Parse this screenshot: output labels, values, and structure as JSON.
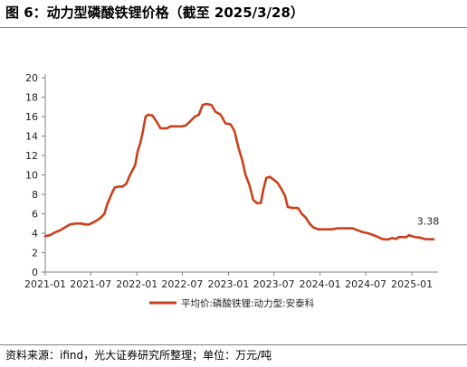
{
  "figure_title": "图 6：动力型磷酸铁锂价格（截至 2025/3/28）",
  "source_note": "资料来源：ifind，光大证券研究所整理；单位：万元/吨",
  "colors": {
    "line": "#c9411a",
    "axis": "#808080",
    "text": "#222222"
  },
  "chart_data": {
    "type": "line",
    "title": "",
    "xlabel": "",
    "ylabel": "",
    "x_ticks": [
      "2021-01",
      "2021-07",
      "2022-01",
      "2022-07",
      "2023-01",
      "2023-07",
      "2024-01",
      "2024-07",
      "2025-01"
    ],
    "y_ticks": [
      0,
      2,
      4,
      6,
      8,
      10,
      12,
      14,
      16,
      18,
      20
    ],
    "ylim": [
      0,
      20
    ],
    "xlim": [
      "2021-01-01",
      "2025-04-15"
    ],
    "grid": false,
    "legend_position": "bottom-center",
    "series": [
      {
        "name": "平均价:磷酸铁锂:动力型:安泰科",
        "points": [
          [
            "2021-01-01",
            3.7
          ],
          [
            "2021-01-20",
            3.8
          ],
          [
            "2021-02-10",
            4.1
          ],
          [
            "2021-03-01",
            4.3
          ],
          [
            "2021-03-20",
            4.6
          ],
          [
            "2021-04-10",
            4.9
          ],
          [
            "2021-05-01",
            5.0
          ],
          [
            "2021-05-25",
            5.0
          ],
          [
            "2021-06-10",
            4.9
          ],
          [
            "2021-06-25",
            4.9
          ],
          [
            "2021-07-10",
            5.1
          ],
          [
            "2021-07-25",
            5.3
          ],
          [
            "2021-08-10",
            5.6
          ],
          [
            "2021-08-25",
            6.0
          ],
          [
            "2021-09-05",
            7.0
          ],
          [
            "2021-09-15",
            7.6
          ],
          [
            "2021-09-25",
            8.2
          ],
          [
            "2021-10-05",
            8.7
          ],
          [
            "2021-10-20",
            8.8
          ],
          [
            "2021-11-05",
            8.8
          ],
          [
            "2021-11-20",
            9.1
          ],
          [
            "2021-12-05",
            10.0
          ],
          [
            "2021-12-15",
            10.5
          ],
          [
            "2021-12-25",
            11.0
          ],
          [
            "2022-01-05",
            12.5
          ],
          [
            "2022-01-15",
            13.3
          ],
          [
            "2022-01-25",
            14.5
          ],
          [
            "2022-02-05",
            16.0
          ],
          [
            "2022-02-15",
            16.2
          ],
          [
            "2022-03-05",
            16.1
          ],
          [
            "2022-03-20",
            15.5
          ],
          [
            "2022-04-05",
            14.8
          ],
          [
            "2022-05-01",
            14.8
          ],
          [
            "2022-05-15",
            15.0
          ],
          [
            "2022-06-01",
            15.0
          ],
          [
            "2022-07-01",
            15.0
          ],
          [
            "2022-07-15",
            15.1
          ],
          [
            "2022-08-01",
            15.5
          ],
          [
            "2022-08-20",
            16.0
          ],
          [
            "2022-09-05",
            16.2
          ],
          [
            "2022-09-20",
            17.2
          ],
          [
            "2022-10-05",
            17.3
          ],
          [
            "2022-10-25",
            17.2
          ],
          [
            "2022-11-10",
            16.5
          ],
          [
            "2022-12-01",
            16.2
          ],
          [
            "2022-12-20",
            15.3
          ],
          [
            "2023-01-10",
            15.2
          ],
          [
            "2023-01-25",
            14.5
          ],
          [
            "2023-02-10",
            12.8
          ],
          [
            "2023-02-25",
            11.5
          ],
          [
            "2023-03-10",
            10.0
          ],
          [
            "2023-03-25",
            9.0
          ],
          [
            "2023-04-10",
            7.4
          ],
          [
            "2023-04-25",
            7.1
          ],
          [
            "2023-05-10",
            7.1
          ],
          [
            "2023-05-20",
            8.5
          ],
          [
            "2023-06-01",
            9.7
          ],
          [
            "2023-06-15",
            9.8
          ],
          [
            "2023-07-01",
            9.5
          ],
          [
            "2023-07-15",
            9.2
          ],
          [
            "2023-08-01",
            8.5
          ],
          [
            "2023-08-15",
            7.8
          ],
          [
            "2023-08-25",
            6.7
          ],
          [
            "2023-09-15",
            6.6
          ],
          [
            "2023-10-05",
            6.6
          ],
          [
            "2023-10-20",
            6.0
          ],
          [
            "2023-11-05",
            5.6
          ],
          [
            "2023-11-20",
            5.0
          ],
          [
            "2023-12-05",
            4.6
          ],
          [
            "2023-12-25",
            4.4
          ],
          [
            "2024-01-15",
            4.4
          ],
          [
            "2024-02-15",
            4.4
          ],
          [
            "2024-03-10",
            4.5
          ],
          [
            "2024-04-15",
            4.5
          ],
          [
            "2024-05-10",
            4.5
          ],
          [
            "2024-05-30",
            4.3
          ],
          [
            "2024-06-20",
            4.1
          ],
          [
            "2024-07-10",
            4.0
          ],
          [
            "2024-08-01",
            3.8
          ],
          [
            "2024-08-20",
            3.6
          ],
          [
            "2024-09-05",
            3.4
          ],
          [
            "2024-09-25",
            3.35
          ],
          [
            "2024-10-15",
            3.5
          ],
          [
            "2024-10-28",
            3.4
          ],
          [
            "2024-11-10",
            3.6
          ],
          [
            "2024-11-25",
            3.6
          ],
          [
            "2024-12-10",
            3.6
          ],
          [
            "2024-12-20",
            3.8
          ],
          [
            "2024-12-31",
            3.7
          ],
          [
            "2025-01-15",
            3.6
          ],
          [
            "2025-02-01",
            3.55
          ],
          [
            "2025-02-20",
            3.4
          ],
          [
            "2025-03-10",
            3.38
          ],
          [
            "2025-03-28",
            3.38
          ]
        ]
      }
    ],
    "annotations": [
      {
        "text": "3.38",
        "date": "2025-03-28",
        "value": 3.38
      }
    ]
  }
}
